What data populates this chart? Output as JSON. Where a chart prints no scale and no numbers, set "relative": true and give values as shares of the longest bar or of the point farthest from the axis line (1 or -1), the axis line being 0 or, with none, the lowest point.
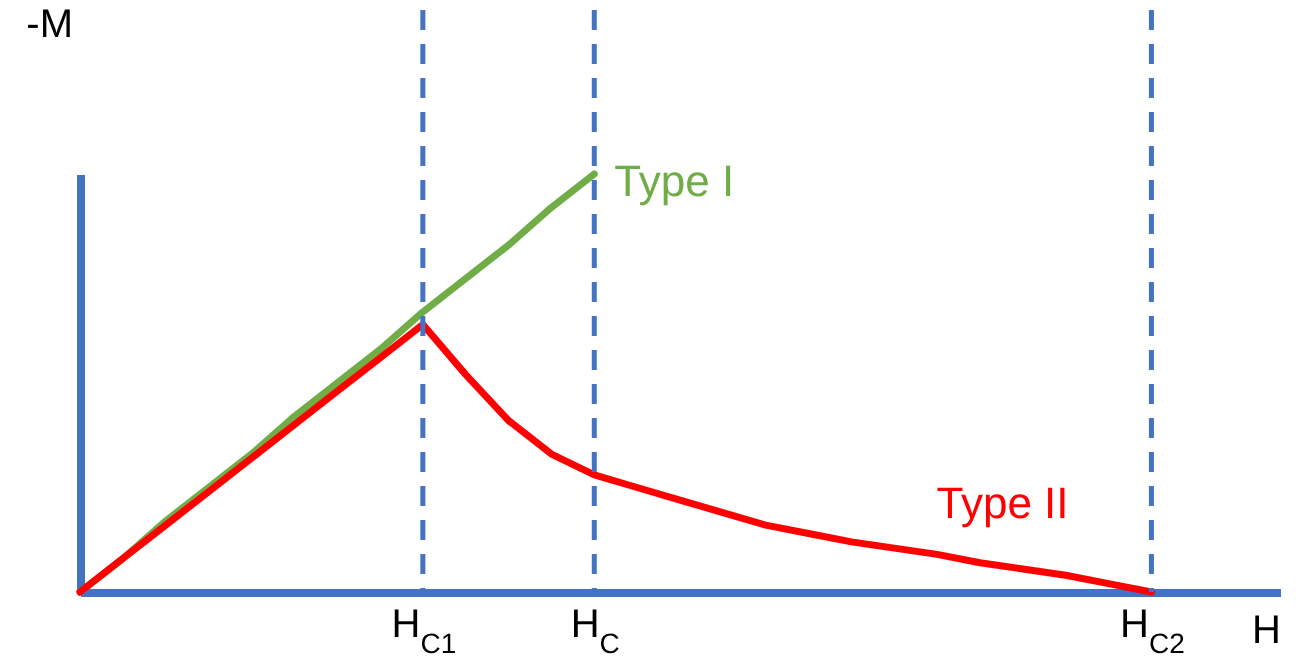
{
  "chart_data": {
    "type": "line",
    "relative": true,
    "xlabel": "H",
    "ylabel": "-M",
    "categories": [
      null,
      null,
      null,
      null,
      null,
      null,
      null,
      null,
      "H$_{C1}$",
      null,
      null,
      null,
      "H$_{C}$",
      null,
      null,
      null,
      null,
      null,
      null,
      null,
      null,
      null,
      null,
      null,
      null,
      "H$_{C2}$",
      null,
      null,
      null
    ],
    "series": [
      {
        "name": "Type I",
        "color": "#70ad47",
        "values": [
          0,
          0.08,
          0.17,
          0.25,
          0.33,
          0.42,
          0.5,
          0.58,
          0.67,
          0.75,
          0.83,
          0.92,
          1,
          null,
          null,
          null,
          null,
          null,
          null,
          null,
          null,
          null,
          null,
          null,
          null,
          null,
          null,
          null,
          null
        ]
      },
      {
        "name": "Type II",
        "color": "#ff0000",
        "values": [
          0,
          0.08,
          0.16,
          0.24,
          0.32,
          0.4,
          0.48,
          0.56,
          0.64,
          0.52,
          0.41,
          0.33,
          0.28,
          0.25,
          0.22,
          0.19,
          0.16,
          0.14,
          0.12,
          0.105,
          0.09,
          0.07,
          0.055,
          0.04,
          0.02,
          0,
          null,
          null,
          null
        ]
      }
    ],
    "ref_lines": [
      {
        "axis": "x",
        "value": "H$_{C1}$",
        "line_style": "dashed",
        "color": "#4472c4"
      },
      {
        "axis": "x",
        "value": "H$_{C}$",
        "line_style": "dashed",
        "color": "#4472c4"
      },
      {
        "axis": "x",
        "value": "H$_{C2}$",
        "line_style": "dashed",
        "color": "#4472c4"
      }
    ],
    "line_style": "solid",
    "marker": "none"
  }
}
